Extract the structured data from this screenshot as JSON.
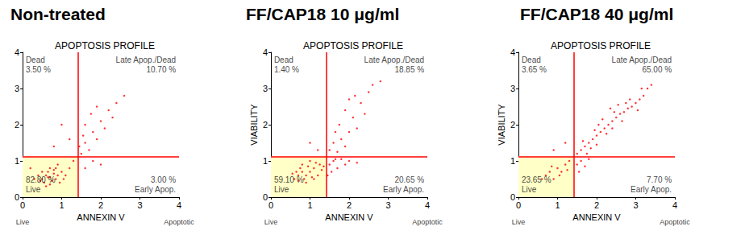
{
  "chart_data": [
    {
      "type": "scatter",
      "title": "Non-treated",
      "subtitle": "APOPTOSIS PROFILE",
      "x_label": "ANNEXIN V",
      "x_end_labels": [
        "Live",
        "Apoptotic"
      ],
      "xlim": [
        0,
        4
      ],
      "xticks": [
        0,
        1,
        2,
        3,
        4
      ],
      "ylim": [
        0,
        4
      ],
      "yticks": [
        0,
        1,
        2,
        3,
        4
      ],
      "grid": false,
      "color": "#ff0000",
      "gates": {
        "x": 1.42,
        "y": 1.12
      },
      "quadrants": {
        "names": [
          "Dead",
          "Late Apop./Dead",
          "Live",
          "Early Apop."
        ],
        "values": [
          3.5,
          10.7,
          82.8,
          3.0
        ],
        "value_labels": [
          "3.50 %",
          "10.70 %",
          "82.80 %",
          "3.00 %"
        ]
      },
      "x": [
        0.5,
        0.6,
        0.7,
        0.8,
        0.75,
        0.65,
        0.9,
        0.55,
        0.85,
        1.0,
        0.7,
        0.4,
        0.95,
        0.6,
        1.1,
        0.8,
        0.5,
        0.3,
        1.2,
        0.9,
        0.7,
        1.05,
        0.45,
        0.65,
        0.85,
        1.3,
        1.5,
        1.6,
        1.7,
        1.8,
        1.9,
        1.6,
        2.0,
        2.1,
        1.75,
        2.2,
        1.9,
        2.4,
        2.3,
        1.55,
        2.6,
        1.45,
        0.8,
        1.2,
        1.0,
        1.6,
        1.8,
        2.0,
        0.2
      ],
      "values": [
        0.5,
        0.6,
        0.55,
        0.65,
        0.45,
        0.7,
        0.6,
        0.4,
        0.5,
        0.7,
        0.8,
        0.6,
        0.4,
        0.3,
        0.6,
        0.75,
        0.7,
        0.5,
        0.8,
        0.9,
        0.35,
        0.5,
        0.45,
        0.55,
        0.8,
        1.0,
        1.2,
        1.5,
        1.3,
        1.8,
        1.6,
        2.0,
        2.1,
        1.9,
        2.3,
        2.4,
        2.5,
        2.6,
        2.2,
        1.7,
        2.8,
        1.4,
        1.4,
        1.6,
        2.0,
        0.8,
        1.0,
        0.9,
        0.8
      ]
    },
    {
      "type": "scatter",
      "title": "FF/CAP18 10 μg/ml",
      "subtitle": "APOPTOSIS PROFILE",
      "x_label": "ANNEXIN V",
      "y_label": "VIABILITY",
      "x_end_labels": [
        "Live",
        "Apoptotic"
      ],
      "xlim": [
        0,
        4
      ],
      "xticks": [
        0,
        1,
        2,
        3,
        4
      ],
      "ylim": [
        0,
        4
      ],
      "yticks": [
        0,
        1,
        2,
        3,
        4
      ],
      "grid": false,
      "color": "#ff0000",
      "gates": {
        "x": 1.42,
        "y": 1.12
      },
      "quadrants": {
        "names": [
          "Dead",
          "Late Apop./Dead",
          "Live",
          "Early Apop."
        ],
        "values": [
          1.4,
          18.85,
          59.1,
          20.65
        ],
        "value_labels": [
          "1.40 %",
          "18.85 %",
          "59.10 %",
          "20.65 %"
        ]
      },
      "x": [
        0.6,
        0.7,
        0.8,
        0.9,
        1.0,
        1.1,
        0.85,
        0.95,
        0.75,
        1.2,
        1.05,
        1.3,
        0.65,
        0.9,
        1.15,
        0.8,
        1.25,
        0.55,
        1.0,
        0.7,
        1.35,
        1.1,
        1.5,
        1.6,
        1.7,
        1.55,
        1.8,
        1.9,
        2.0,
        1.65,
        2.2,
        1.45,
        1.5,
        1.6,
        1.7,
        1.8,
        1.9,
        2.0,
        1.75,
        2.1,
        2.2,
        1.9,
        2.3,
        2.0,
        2.5,
        2.4,
        2.6,
        2.8,
        1.65,
        2.15,
        1.2,
        1.0
      ],
      "values": [
        0.5,
        0.6,
        0.7,
        0.6,
        0.7,
        0.8,
        0.5,
        0.85,
        0.8,
        0.6,
        0.55,
        0.75,
        0.7,
        0.4,
        0.95,
        0.9,
        0.9,
        0.65,
        1.0,
        0.45,
        0.85,
        0.5,
        0.9,
        1.0,
        0.8,
        0.7,
        1.05,
        0.9,
        1.0,
        1.05,
        0.95,
        0.6,
        1.3,
        1.5,
        1.25,
        1.6,
        1.4,
        1.8,
        2.0,
        2.2,
        1.9,
        2.4,
        2.6,
        2.7,
        2.9,
        2.3,
        3.1,
        3.2,
        1.8,
        2.8,
        1.3,
        1.5
      ]
    },
    {
      "type": "scatter",
      "title": "FF/CAP18 40 μg/ml",
      "subtitle": "APOPTOSIS PROFILE",
      "x_label": "ANNEXIN V",
      "y_label": "VIABILITY",
      "x_end_labels": [
        "Live",
        "Apoptotic"
      ],
      "xlim": [
        0,
        4
      ],
      "xticks": [
        0,
        1,
        2,
        3,
        4
      ],
      "ylim": [
        0,
        4
      ],
      "yticks": [
        0,
        1,
        2,
        3,
        4
      ],
      "grid": false,
      "color": "#ff0000",
      "gates": {
        "x": 1.42,
        "y": 1.12
      },
      "quadrants": {
        "names": [
          "Dead",
          "Late Apop./Dead",
          "Live",
          "Early Apop."
        ],
        "values": [
          3.65,
          65.0,
          23.65,
          7.7
        ],
        "value_labels": [
          "3.65 %",
          "65.00 %",
          "23.65 %",
          "7.70 %"
        ]
      },
      "x": [
        0.7,
        0.8,
        0.9,
        1.0,
        1.1,
        1.2,
        0.85,
        1.3,
        0.6,
        1.05,
        1.25,
        1.5,
        1.6,
        1.7,
        1.8,
        1.55,
        1.5,
        1.6,
        1.7,
        1.8,
        1.9,
        2.0,
        2.1,
        2.2,
        2.3,
        2.4,
        2.5,
        2.6,
        2.7,
        2.8,
        2.9,
        3.0,
        3.1,
        3.2,
        3.3,
        1.65,
        1.85,
        2.05,
        2.25,
        2.45,
        2.65,
        2.85,
        3.05,
        2.15,
        1.95,
        2.35,
        2.55,
        2.75,
        3.15,
        3.4,
        1.75,
        2.0,
        2.4,
        0.9,
        1.2
      ],
      "values": [
        0.6,
        0.7,
        0.5,
        0.8,
        0.7,
        0.9,
        0.85,
        1.0,
        0.5,
        0.6,
        0.75,
        0.9,
        1.0,
        0.85,
        1.05,
        0.7,
        1.2,
        1.3,
        1.4,
        1.5,
        1.6,
        1.7,
        1.8,
        1.9,
        2.0,
        2.1,
        2.2,
        2.3,
        2.35,
        2.45,
        2.5,
        2.6,
        2.7,
        2.8,
        3.0,
        1.55,
        1.35,
        2.0,
        1.75,
        2.35,
        2.1,
        2.7,
        2.4,
        2.15,
        1.85,
        2.45,
        2.55,
        2.6,
        3.0,
        3.1,
        1.2,
        1.45,
        1.9,
        1.3,
        1.5
      ]
    }
  ]
}
